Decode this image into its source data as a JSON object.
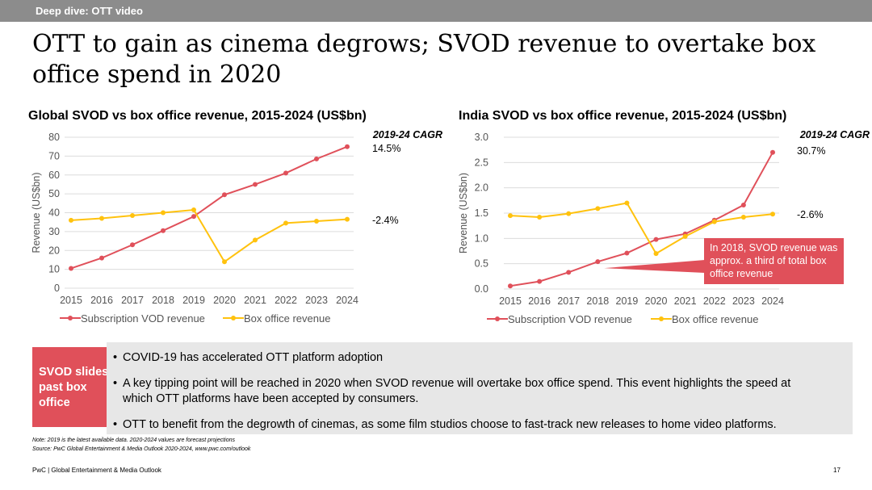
{
  "header": {
    "section": "Deep dive: OTT video"
  },
  "page_title": "OTT to gain as cinema degrows; SVOD revenue to overtake box office spend in 2020",
  "chart_data": [
    {
      "type": "line",
      "title": "Global SVOD vs box office revenue, 2015-2024 (US$bn)",
      "ylabel": "Revenue (US$bn)",
      "xlabel": "",
      "ylim": [
        0,
        80
      ],
      "yticks": [
        "0",
        "10",
        "20",
        "30",
        "40",
        "50",
        "60",
        "70",
        "80"
      ],
      "categories": [
        "2015",
        "2016",
        "2017",
        "2018",
        "2019",
        "2020",
        "2021",
        "2022",
        "2023",
        "2024"
      ],
      "series": [
        {
          "name": "Subscription VOD revenue",
          "color": "#e0505a",
          "values": [
            10.5,
            16,
            23,
            30.5,
            38,
            49.5,
            55,
            61,
            68.5,
            75
          ],
          "cagr": "14.5%"
        },
        {
          "name": "Box office revenue",
          "color": "#ffc20e",
          "values": [
            36,
            37,
            38.5,
            40,
            41.5,
            14,
            25.5,
            34.5,
            35.5,
            36.5
          ],
          "cagr": "-2.4%"
        }
      ],
      "cagr_header": "2019-24 CAGR",
      "grid": true,
      "legend": "bottom"
    },
    {
      "type": "line",
      "title": "India SVOD vs box office revenue, 2015-2024 (US$bn)",
      "ylabel": "Revenue (US$bn)",
      "xlabel": "",
      "ylim": [
        0,
        3
      ],
      "yticks": [
        "0.0",
        "0.5",
        "1.0",
        "1.5",
        "2.0",
        "2.5",
        "3.0"
      ],
      "categories": [
        "2015",
        "2016",
        "2017",
        "2018",
        "2019",
        "2020",
        "2021",
        "2022",
        "2023",
        "2024"
      ],
      "series": [
        {
          "name": "Subscription VOD revenue",
          "color": "#e0505a",
          "values": [
            0.06,
            0.15,
            0.33,
            0.54,
            0.71,
            0.98,
            1.09,
            1.36,
            1.66,
            2.7
          ],
          "cagr": "30.7%"
        },
        {
          "name": "Box office revenue",
          "color": "#ffc20e",
          "values": [
            1.45,
            1.42,
            1.49,
            1.59,
            1.7,
            0.7,
            1.04,
            1.33,
            1.42,
            1.48
          ],
          "cagr": "-2.6%"
        }
      ],
      "cagr_header": "2019-24 CAGR",
      "annotation": "In 2018, SVOD revenue was approx. a third of total box office revenue",
      "grid": true,
      "legend": "bottom"
    }
  ],
  "summary": {
    "box_label": "SVOD slides past box office",
    "bullets": [
      "COVID-19 has accelerated OTT platform adoption",
      "A key tipping point will be reached in 2020 when SVOD revenue will overtake box office spend. This event highlights the speed at which OTT platforms have been accepted by consumers.",
      "OTT to benefit from the degrowth of cinemas, as some film studios choose to fast-track new releases to home video platforms."
    ]
  },
  "notes": {
    "note": "Note: 2019 is the latest available data. 2020-2024 values are forecast projections",
    "source": "Source: PwC Global Entertainment & Media Outlook 2020-2024, www.pwc.com/outlook"
  },
  "footer": {
    "text": "PwC | Global Entertainment & Media Outlook",
    "page": "17"
  }
}
